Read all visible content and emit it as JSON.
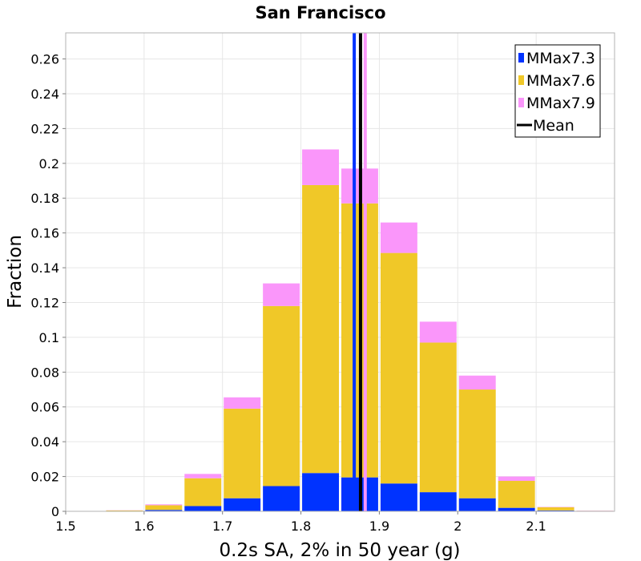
{
  "chart_data": {
    "type": "bar",
    "stacked": true,
    "title": "San Francisco",
    "xlabel": "0.2s SA, 2% in 50 year (g)",
    "ylabel": "Fraction",
    "xlim": [
      1.5,
      2.2
    ],
    "ylim": [
      0,
      0.275
    ],
    "bin_width": 0.05,
    "x_ticks": [
      1.5,
      1.6,
      1.7,
      1.8,
      1.9,
      2.0,
      2.1
    ],
    "x_tick_labels": [
      "1.5",
      "1.6",
      "1.7",
      "1.8",
      "1.9",
      "2",
      "2.1"
    ],
    "y_ticks": [
      0,
      0.02,
      0.04,
      0.06,
      0.08,
      0.1,
      0.12,
      0.14,
      0.16,
      0.18,
      0.2,
      0.22,
      0.24,
      0.26
    ],
    "y_tick_labels": [
      "0",
      "0.02",
      "0.04",
      "0.06",
      "0.08",
      "0.1",
      "0.12",
      "0.14",
      "0.16",
      "0.18",
      "0.2",
      "0.22",
      "0.24",
      "0.26"
    ],
    "grid": true,
    "legend_position": "top-right",
    "bin_centers": [
      1.575,
      1.625,
      1.675,
      1.725,
      1.775,
      1.825,
      1.875,
      1.925,
      1.975,
      2.025,
      2.075,
      2.125,
      2.175
    ],
    "series": [
      {
        "name": "MMax7.3",
        "color": "#0033ff",
        "values": [
          0.0002,
          0.0008,
          0.003,
          0.0075,
          0.0145,
          0.022,
          0.0195,
          0.016,
          0.011,
          0.0075,
          0.002,
          0.0005,
          0.0001
        ]
      },
      {
        "name": "MMax7.6",
        "color": "#f0c828",
        "values": [
          0.0003,
          0.0027,
          0.016,
          0.0515,
          0.1035,
          0.1655,
          0.1575,
          0.1325,
          0.086,
          0.0625,
          0.0155,
          0.0018,
          0.0002
        ]
      },
      {
        "name": "MMax7.9",
        "color": "#fa96fa",
        "values": [
          0.0001,
          0.0005,
          0.0025,
          0.0065,
          0.013,
          0.0205,
          0.02,
          0.0175,
          0.012,
          0.008,
          0.0025,
          0.0002,
          0.0001
        ]
      }
    ],
    "lines": [
      {
        "name": "MMax7.3",
        "color": "#0033ff",
        "x": 1.868
      },
      {
        "name": "MMax7.9",
        "color": "#fa96fa",
        "x": 1.882
      },
      {
        "name": "Mean",
        "color": "#000000",
        "x": 1.876
      }
    ],
    "legend": [
      {
        "label": "MMax7.3",
        "color": "#0033ff",
        "kind": "box"
      },
      {
        "label": "MMax7.6",
        "color": "#f0c828",
        "kind": "box"
      },
      {
        "label": "MMax7.9",
        "color": "#fa96fa",
        "kind": "box"
      },
      {
        "label": "Mean",
        "color": "#000000",
        "kind": "line"
      }
    ]
  }
}
